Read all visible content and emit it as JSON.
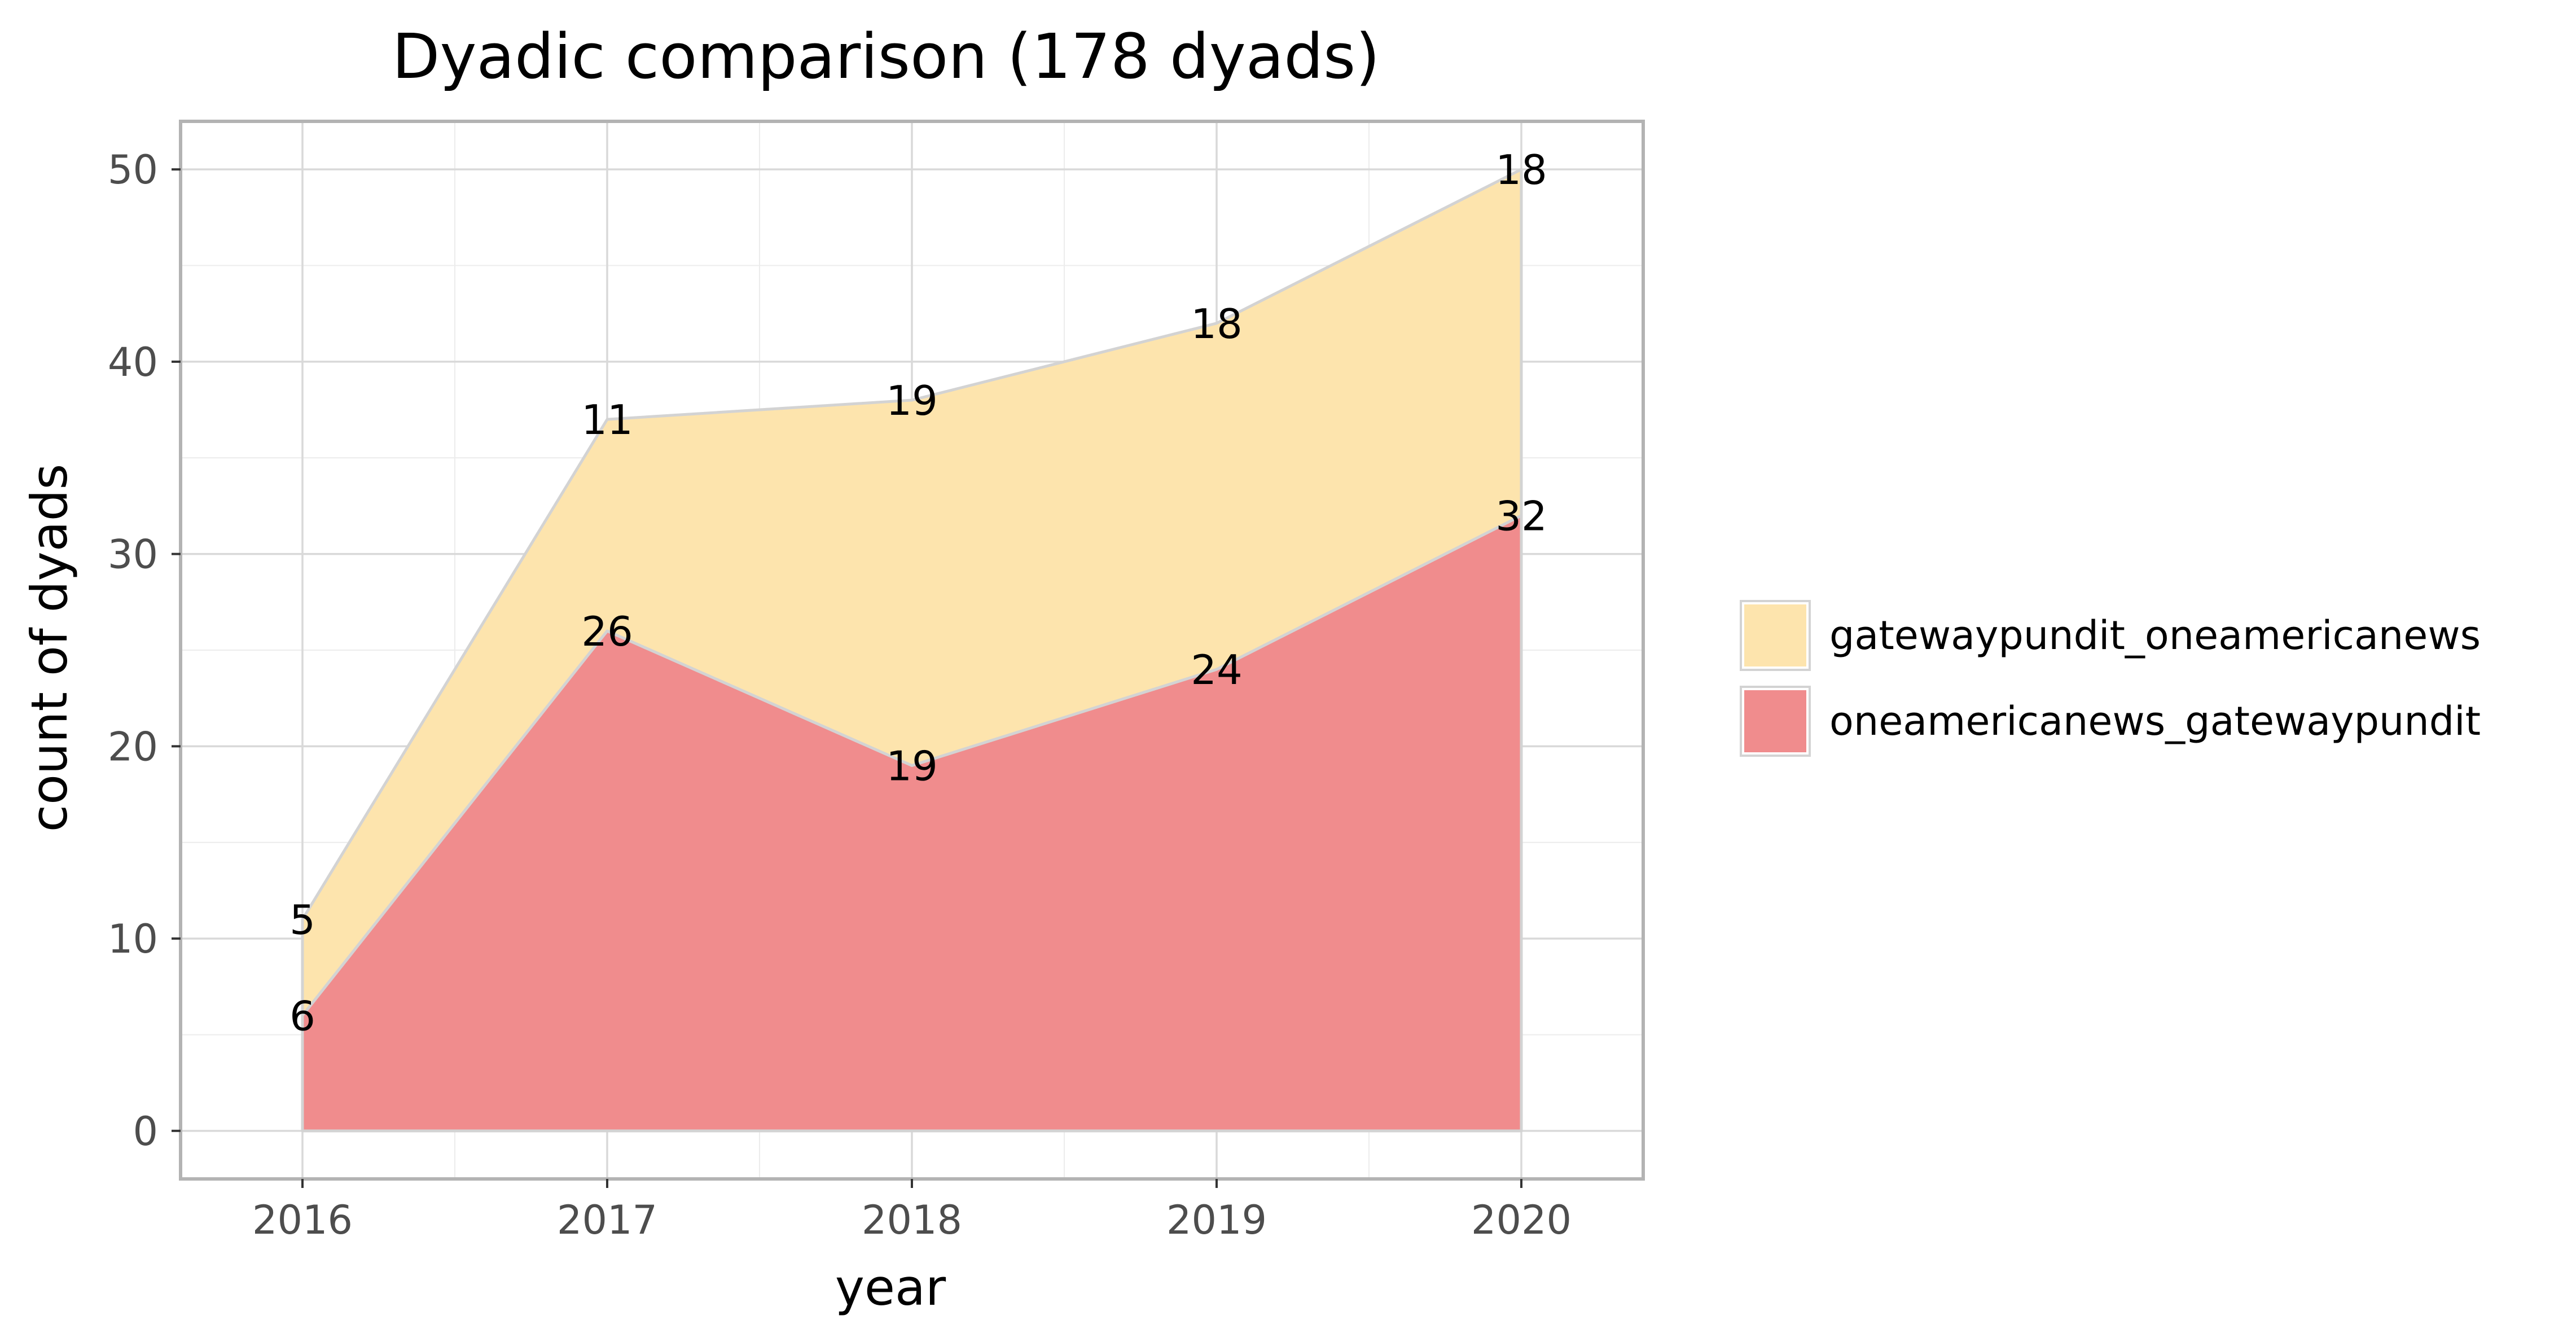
{
  "chart_data": {
    "type": "area",
    "stacked": true,
    "title": "Dyadic comparison (178 dyads)",
    "xlabel": "year",
    "ylabel": "count of dyads",
    "x": [
      2016,
      2017,
      2018,
      2019,
      2020
    ],
    "x_ticks": [
      "2016",
      "2017",
      "2018",
      "2019",
      "2020"
    ],
    "xlim": [
      2015.6,
      2020.4
    ],
    "y_ticks": [
      "0",
      "10",
      "20",
      "30",
      "40",
      "50"
    ],
    "ylim": [
      -2.5,
      52.5
    ],
    "grid": true,
    "legend_position": "right",
    "series": [
      {
        "name": "gatewaypundit_oneamericanews",
        "values": [
          5,
          11,
          19,
          18,
          18
        ],
        "color": "#fde4ad"
      },
      {
        "name": "oneamericanews_gatewaypundit",
        "values": [
          6,
          26,
          19,
          24,
          32
        ],
        "color": "#f08c8d"
      }
    ],
    "stack_order": [
      "oneamericanews_gatewaypundit",
      "gatewaypundit_oneamericanews"
    ],
    "outline_color": "#d3d3d3",
    "grid_color": "#d9d9d9",
    "panel_border_color": "#b3b3b3"
  }
}
